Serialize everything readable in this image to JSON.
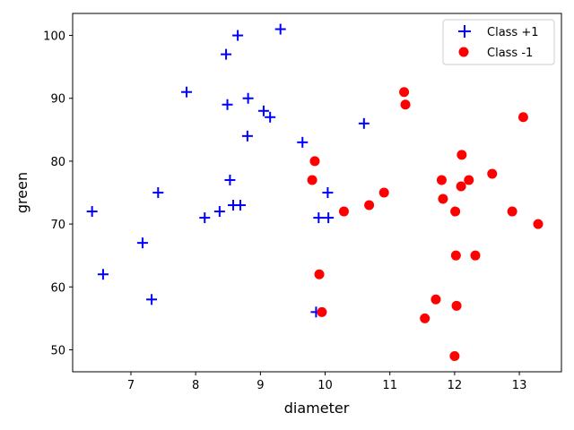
{
  "chart_data": {
    "type": "scatter",
    "title": "",
    "xlabel": "diameter",
    "ylabel": "green",
    "xlim": [
      6.1,
      13.65
    ],
    "ylim": [
      46.5,
      103.5
    ],
    "xticks": [
      7,
      8,
      9,
      10,
      11,
      12,
      13
    ],
    "yticks": [
      50,
      60,
      70,
      80,
      90,
      100
    ],
    "grid": false,
    "legend": "top-right",
    "series": [
      {
        "name": "Class +1",
        "marker": "plus",
        "color": "#0000ff",
        "points": [
          [
            6.4,
            72
          ],
          [
            6.57,
            62
          ],
          [
            7.18,
            67
          ],
          [
            7.32,
            58
          ],
          [
            7.42,
            75
          ],
          [
            7.86,
            91
          ],
          [
            8.14,
            71
          ],
          [
            8.37,
            72
          ],
          [
            8.47,
            97
          ],
          [
            8.49,
            89
          ],
          [
            8.53,
            77
          ],
          [
            8.58,
            73
          ],
          [
            8.65,
            100
          ],
          [
            8.69,
            73
          ],
          [
            8.8,
            84
          ],
          [
            8.81,
            90
          ],
          [
            9.05,
            88
          ],
          [
            9.15,
            87
          ],
          [
            9.31,
            101
          ],
          [
            9.65,
            83
          ],
          [
            9.86,
            56
          ],
          [
            9.9,
            71
          ],
          [
            10.04,
            75
          ],
          [
            10.05,
            71
          ],
          [
            10.6,
            86
          ]
        ]
      },
      {
        "name": "Class -1",
        "marker": "circle",
        "color": "#ff0000",
        "points": [
          [
            9.8,
            77
          ],
          [
            9.84,
            80
          ],
          [
            9.91,
            62
          ],
          [
            9.95,
            56
          ],
          [
            10.29,
            72
          ],
          [
            10.68,
            73
          ],
          [
            10.91,
            75
          ],
          [
            11.22,
            91
          ],
          [
            11.24,
            89
          ],
          [
            11.54,
            55
          ],
          [
            11.71,
            58
          ],
          [
            11.8,
            77
          ],
          [
            11.82,
            74
          ],
          [
            12.0,
            49
          ],
          [
            12.01,
            72
          ],
          [
            12.02,
            65
          ],
          [
            12.03,
            57
          ],
          [
            12.1,
            76
          ],
          [
            12.11,
            81
          ],
          [
            12.22,
            77
          ],
          [
            12.32,
            65
          ],
          [
            12.58,
            78
          ],
          [
            12.89,
            72
          ],
          [
            13.06,
            87
          ],
          [
            13.29,
            70
          ]
        ]
      }
    ]
  }
}
